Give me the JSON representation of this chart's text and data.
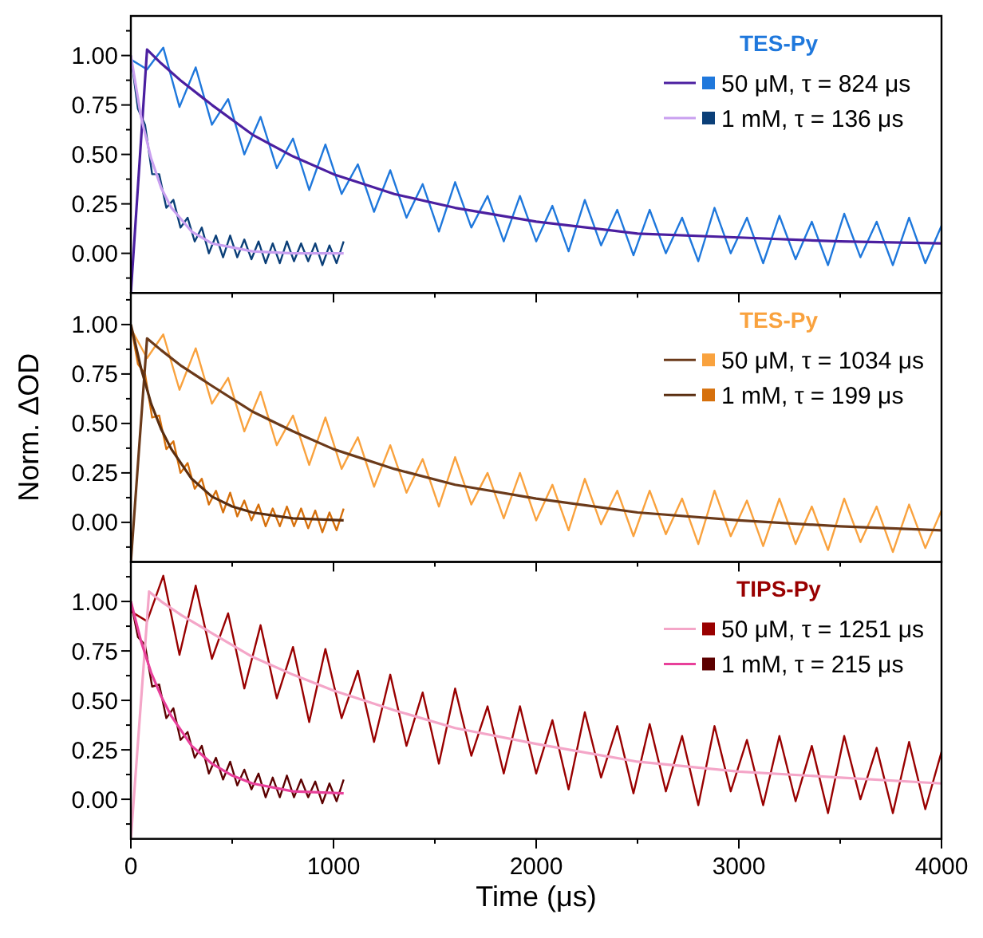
{
  "chart_data": [
    {
      "type": "line",
      "legend_title": "TES-Py",
      "legend": "top right",
      "tick_labels": "y",
      "xlim": [
        0,
        4000
      ],
      "ylim": [
        -0.2,
        1.2
      ],
      "xticks": [
        0,
        {
          "value": 500,
          "label": null
        },
        1000,
        {
          "value": 1500,
          "label": null
        },
        2000,
        {
          "value": 2500,
          "label": null
        },
        3000,
        {
          "value": 3500,
          "label": null
        },
        4000
      ],
      "yticks": [
        {
          "value": -0.125,
          "label": null
        },
        {
          "value": 0,
          "label": "0.00"
        },
        {
          "value": 0.125,
          "label": null
        },
        {
          "value": 0.25,
          "label": "0.25"
        },
        {
          "value": 0.375,
          "label": null
        },
        {
          "value": 0.5,
          "label": "0.50"
        },
        {
          "value": 0.625,
          "label": null
        },
        {
          "value": 0.75,
          "label": "0.75"
        },
        {
          "value": 0.875,
          "label": null
        },
        {
          "value": 1,
          "label": "1.00"
        },
        {
          "value": 1.125,
          "label": null
        }
      ],
      "series": [
        {
          "name": "50 μM, τ = 824 μs",
          "color": "#1f78dc",
          "x": [
            0,
            80,
            160,
            240,
            320,
            400,
            480,
            560,
            640,
            720,
            800,
            880,
            960,
            1040,
            1120,
            1200,
            1280,
            1360,
            1440,
            1520,
            1600,
            1680,
            1760,
            1840,
            1920,
            2000,
            2080,
            2160,
            2240,
            2320,
            2400,
            2480,
            2560,
            2640,
            2720,
            2800,
            2880,
            2960,
            3040,
            3120,
            3200,
            3280,
            3360,
            3440,
            3520,
            3600,
            3680,
            3760,
            3840,
            3920,
            4000
          ],
          "values": [
            0.98,
            0.93,
            1.04,
            0.74,
            0.94,
            0.65,
            0.78,
            0.5,
            0.69,
            0.43,
            0.58,
            0.32,
            0.55,
            0.3,
            0.45,
            0.21,
            0.42,
            0.18,
            0.35,
            0.11,
            0.36,
            0.13,
            0.29,
            0.06,
            0.29,
            0.06,
            0.24,
            0.01,
            0.27,
            0.04,
            0.22,
            -0.01,
            0.22,
            0.0,
            0.18,
            -0.04,
            0.23,
            0.0,
            0.18,
            -0.05,
            0.19,
            -0.03,
            0.16,
            -0.06,
            0.2,
            -0.02,
            0.16,
            -0.06,
            0.18,
            -0.05,
            0.14
          ]
        },
        {
          "name": "1 mM, τ = 136 μs",
          "color": "#0b3f78",
          "x": [
            0,
            35,
            70,
            105,
            140,
            175,
            210,
            245,
            280,
            315,
            350,
            385,
            420,
            455,
            490,
            525,
            560,
            595,
            630,
            665,
            700,
            735,
            770,
            805,
            840,
            875,
            910,
            945,
            980,
            1015,
            1050
          ],
          "values": [
            1.0,
            0.73,
            0.65,
            0.4,
            0.4,
            0.23,
            0.27,
            0.13,
            0.18,
            0.06,
            0.13,
            0.0,
            0.09,
            -0.02,
            0.09,
            -0.02,
            0.07,
            -0.03,
            0.06,
            -0.05,
            0.05,
            -0.05,
            0.06,
            -0.04,
            0.05,
            -0.04,
            0.05,
            -0.06,
            0.04,
            -0.05,
            0.06
          ]
        },
        {
          "color": "#4b1fa0",
          "x": [
            0,
            80,
            150,
            250,
            400,
            600,
            800,
            1000,
            1300,
            1600,
            2000,
            2500,
            3000,
            3500,
            4000
          ],
          "values": [
            -0.2,
            1.03,
            0.96,
            0.87,
            0.75,
            0.6,
            0.49,
            0.4,
            0.3,
            0.23,
            0.16,
            0.1,
            0.08,
            0.06,
            0.05
          ]
        },
        {
          "color": "#c9a0f0",
          "x": [
            0,
            50,
            100,
            150,
            200,
            300,
            400,
            500,
            600,
            800,
            1050
          ],
          "values": [
            1.0,
            0.69,
            0.48,
            0.33,
            0.23,
            0.11,
            0.05,
            0.03,
            0.01,
            0.0,
            0.0
          ]
        }
      ]
    },
    {
      "type": "line",
      "legend_title": "TES-Py",
      "legend": "top right",
      "tick_labels": "y",
      "ylabel": "Norm. ΔOD",
      "xlim": [
        0,
        4000
      ],
      "ylim": [
        -0.2,
        1.16
      ],
      "xticks": [
        0,
        {
          "value": 500,
          "label": null
        },
        1000,
        {
          "value": 1500,
          "label": null
        },
        2000,
        {
          "value": 2500,
          "label": null
        },
        3000,
        {
          "value": 3500,
          "label": null
        },
        4000
      ],
      "yticks": [
        {
          "value": -0.125,
          "label": null
        },
        {
          "value": 0,
          "label": "0.00"
        },
        {
          "value": 0.125,
          "label": null
        },
        {
          "value": 0.25,
          "label": "0.25"
        },
        {
          "value": 0.375,
          "label": null
        },
        {
          "value": 0.5,
          "label": "0.50"
        },
        {
          "value": 0.625,
          "label": null
        },
        {
          "value": 0.75,
          "label": "0.75"
        },
        {
          "value": 0.875,
          "label": null
        },
        {
          "value": 1,
          "label": "1.00"
        },
        {
          "value": 1.125,
          "label": null
        }
      ],
      "series": [
        {
          "name": "50 μM, τ = 1034 μs",
          "color": "#f9a23e",
          "x": [
            0,
            80,
            160,
            240,
            320,
            400,
            480,
            560,
            640,
            720,
            800,
            880,
            960,
            1040,
            1120,
            1200,
            1280,
            1360,
            1440,
            1520,
            1600,
            1680,
            1760,
            1840,
            1920,
            2000,
            2080,
            2160,
            2240,
            2320,
            2400,
            2480,
            2560,
            2640,
            2720,
            2800,
            2880,
            2960,
            3040,
            3120,
            3200,
            3280,
            3360,
            3440,
            3520,
            3600,
            3680,
            3760,
            3840,
            3920,
            4000
          ],
          "values": [
            0.98,
            0.83,
            0.95,
            0.67,
            0.88,
            0.6,
            0.73,
            0.46,
            0.66,
            0.39,
            0.54,
            0.29,
            0.53,
            0.27,
            0.43,
            0.18,
            0.39,
            0.15,
            0.32,
            0.08,
            0.33,
            0.09,
            0.25,
            0.02,
            0.25,
            0.01,
            0.19,
            -0.04,
            0.22,
            -0.01,
            0.16,
            -0.07,
            0.16,
            -0.06,
            0.12,
            -0.11,
            0.16,
            -0.07,
            0.11,
            -0.12,
            0.12,
            -0.11,
            0.08,
            -0.14,
            0.12,
            -0.1,
            0.08,
            -0.15,
            0.09,
            -0.13,
            0.06
          ]
        },
        {
          "name": "1 mM, τ = 199 μs",
          "color": "#d6700c",
          "x": [
            0,
            35,
            70,
            105,
            140,
            175,
            210,
            245,
            280,
            315,
            350,
            385,
            420,
            455,
            490,
            525,
            560,
            595,
            630,
            665,
            700,
            735,
            770,
            805,
            840,
            875,
            910,
            945,
            980,
            1015,
            1050
          ],
          "values": [
            1.0,
            0.8,
            0.75,
            0.53,
            0.54,
            0.37,
            0.41,
            0.25,
            0.3,
            0.17,
            0.22,
            0.09,
            0.16,
            0.05,
            0.15,
            0.03,
            0.11,
            0.01,
            0.09,
            -0.02,
            0.07,
            -0.02,
            0.08,
            -0.02,
            0.07,
            -0.03,
            0.06,
            -0.05,
            0.05,
            -0.04,
            0.07
          ]
        },
        {
          "color": "#6b3a1a",
          "x": [
            0,
            80,
            150,
            250,
            400,
            600,
            800,
            1000,
            1300,
            1600,
            2000,
            2500,
            3000,
            3500,
            4000
          ],
          "values": [
            -0.2,
            0.93,
            0.87,
            0.79,
            0.69,
            0.56,
            0.46,
            0.37,
            0.27,
            0.19,
            0.12,
            0.05,
            0.01,
            -0.02,
            -0.04
          ]
        },
        {
          "color": "#5a2e10",
          "x": [
            0,
            50,
            100,
            150,
            200,
            300,
            400,
            500,
            600,
            800,
            1050
          ],
          "values": [
            1.0,
            0.78,
            0.6,
            0.47,
            0.37,
            0.22,
            0.13,
            0.08,
            0.05,
            0.02,
            0.01
          ]
        }
      ]
    },
    {
      "type": "line",
      "legend_title": "TIPS-Py",
      "legend": "top right",
      "xlabel": "Time (μs)",
      "xlim": [
        0,
        4000
      ],
      "ylim": [
        -0.2,
        1.2
      ],
      "xticks": [
        0,
        {
          "value": 500,
          "label": null
        },
        1000,
        {
          "value": 1500,
          "label": null
        },
        2000,
        {
          "value": 2500,
          "label": null
        },
        3000,
        {
          "value": 3500,
          "label": null
        },
        4000
      ],
      "yticks": [
        {
          "value": -0.125,
          "label": null
        },
        {
          "value": 0,
          "label": "0.00"
        },
        {
          "value": 0.125,
          "label": null
        },
        {
          "value": 0.25,
          "label": "0.25"
        },
        {
          "value": 0.375,
          "label": null
        },
        {
          "value": 0.5,
          "label": "0.50"
        },
        {
          "value": 0.625,
          "label": null
        },
        {
          "value": 0.75,
          "label": "0.75"
        },
        {
          "value": 0.875,
          "label": null
        },
        {
          "value": 1,
          "label": "1.00"
        },
        {
          "value": 1.125,
          "label": null
        }
      ],
      "series": [
        {
          "name": "50 μM, τ = 1251 μs",
          "color": "#990000",
          "x": [
            0,
            80,
            160,
            240,
            320,
            400,
            480,
            560,
            640,
            720,
            800,
            880,
            960,
            1040,
            1120,
            1200,
            1280,
            1360,
            1440,
            1520,
            1600,
            1680,
            1760,
            1840,
            1920,
            2000,
            2080,
            2160,
            2240,
            2320,
            2400,
            2480,
            2560,
            2640,
            2720,
            2800,
            2880,
            2960,
            3040,
            3120,
            3200,
            3280,
            3360,
            3440,
            3520,
            3600,
            3680,
            3760,
            3840,
            3920,
            4000
          ],
          "values": [
            0.95,
            0.9,
            1.13,
            0.73,
            1.08,
            0.71,
            0.94,
            0.56,
            0.88,
            0.51,
            0.77,
            0.39,
            0.76,
            0.41,
            0.65,
            0.29,
            0.63,
            0.27,
            0.54,
            0.18,
            0.56,
            0.22,
            0.47,
            0.13,
            0.47,
            0.13,
            0.4,
            0.05,
            0.44,
            0.11,
            0.37,
            0.03,
            0.38,
            0.04,
            0.32,
            -0.03,
            0.37,
            0.04,
            0.3,
            -0.03,
            0.32,
            -0.01,
            0.27,
            -0.07,
            0.32,
            0.0,
            0.26,
            -0.07,
            0.29,
            -0.05,
            0.24
          ]
        },
        {
          "name": "1 mM, τ = 215 μs",
          "color": "#5c0000",
          "x": [
            0,
            35,
            70,
            105,
            140,
            175,
            210,
            245,
            280,
            315,
            350,
            385,
            420,
            455,
            490,
            525,
            560,
            595,
            630,
            665,
            700,
            735,
            770,
            805,
            840,
            875,
            910,
            945,
            980,
            1015,
            1050
          ],
          "values": [
            1.0,
            0.82,
            0.78,
            0.57,
            0.58,
            0.41,
            0.46,
            0.3,
            0.34,
            0.21,
            0.27,
            0.13,
            0.21,
            0.1,
            0.19,
            0.07,
            0.15,
            0.05,
            0.13,
            0.01,
            0.11,
            0.01,
            0.12,
            0.01,
            0.1,
            0.01,
            0.09,
            -0.02,
            0.08,
            -0.01,
            0.1
          ]
        },
        {
          "color": "#f4a6c8",
          "x": [
            0,
            90,
            150,
            250,
            400,
            600,
            800,
            1000,
            1300,
            1600,
            2000,
            2500,
            3000,
            3500,
            4000
          ],
          "values": [
            -0.2,
            1.05,
            1.0,
            0.93,
            0.84,
            0.72,
            0.63,
            0.55,
            0.45,
            0.36,
            0.28,
            0.19,
            0.14,
            0.11,
            0.08
          ]
        },
        {
          "color": "#e8409a",
          "x": [
            0,
            50,
            100,
            150,
            200,
            300,
            400,
            500,
            600,
            800,
            1050
          ],
          "values": [
            1.0,
            0.8,
            0.64,
            0.52,
            0.42,
            0.27,
            0.18,
            0.12,
            0.08,
            0.04,
            0.03
          ]
        }
      ]
    }
  ]
}
